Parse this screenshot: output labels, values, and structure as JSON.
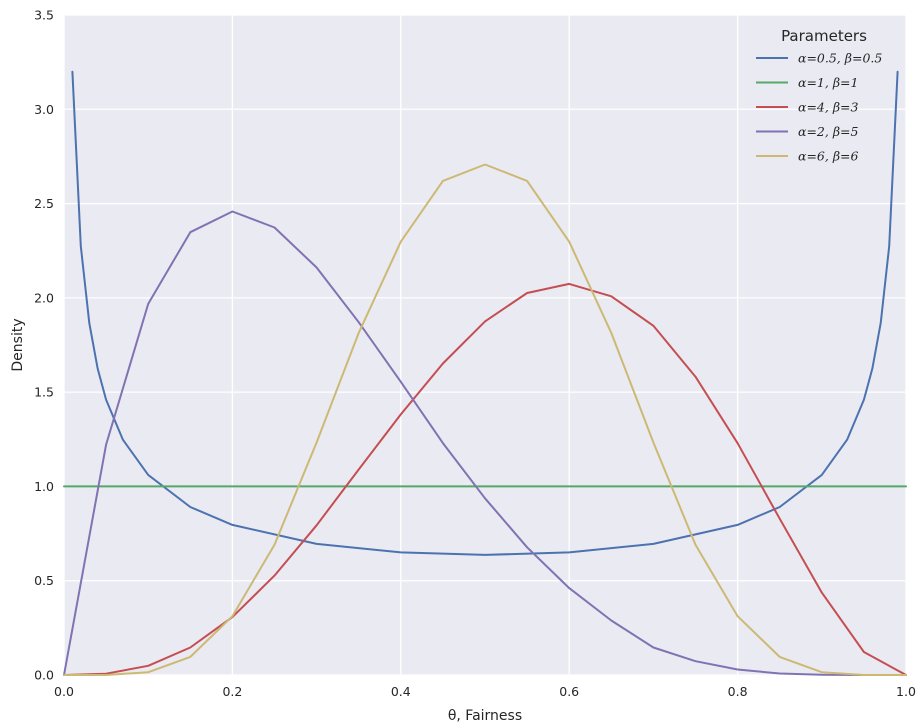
{
  "chart_data": {
    "type": "line",
    "xlabel": "θ, Fairness",
    "ylabel": "Density",
    "xlim": [
      0.0,
      1.0
    ],
    "ylim": [
      0.0,
      3.5
    ],
    "xticks": [
      "0.0",
      "0.2",
      "0.4",
      "0.6",
      "0.8",
      "1.0"
    ],
    "yticks": [
      "0.0",
      "0.5",
      "1.0",
      "1.5",
      "2.0",
      "2.5",
      "3.0",
      "3.5"
    ],
    "grid": true,
    "legend": {
      "title": "Parameters",
      "placement": "top-right"
    },
    "background": "#eaeaf2",
    "series": [
      {
        "name": "α=0.5, β=0.5",
        "color": "#4c72b0",
        "x": [
          0.01,
          0.02,
          0.03,
          0.04,
          0.05,
          0.07,
          0.1,
          0.15,
          0.2,
          0.3,
          0.4,
          0.5,
          0.6,
          0.7,
          0.8,
          0.85,
          0.9,
          0.93,
          0.95,
          0.96,
          0.97,
          0.98,
          0.99
        ],
        "values": [
          3.199,
          2.274,
          1.866,
          1.624,
          1.46,
          1.248,
          1.061,
          0.891,
          0.796,
          0.695,
          0.65,
          0.637,
          0.65,
          0.695,
          0.796,
          0.891,
          1.061,
          1.248,
          1.46,
          1.624,
          1.866,
          2.274,
          3.199
        ]
      },
      {
        "name": "α=1, β=1",
        "color": "#55a868",
        "x": [
          0.0,
          1.0
        ],
        "values": [
          1.0,
          1.0
        ]
      },
      {
        "name": "α=4, β=3",
        "color": "#c44e52",
        "x": [
          0.0,
          0.05,
          0.1,
          0.15,
          0.2,
          0.25,
          0.3,
          0.35,
          0.4,
          0.45,
          0.5,
          0.55,
          0.6,
          0.65,
          0.7,
          0.75,
          0.8,
          0.85,
          0.9,
          0.95,
          1.0
        ],
        "values": [
          0.0,
          0.007,
          0.049,
          0.146,
          0.307,
          0.527,
          0.794,
          1.09,
          1.382,
          1.652,
          1.875,
          2.026,
          2.074,
          2.008,
          1.852,
          1.582,
          1.229,
          0.829,
          0.437,
          0.122,
          0.0
        ]
      },
      {
        "name": "α=2, β=5",
        "color": "#8172b2",
        "x": [
          0.0,
          0.05,
          0.1,
          0.15,
          0.2,
          0.25,
          0.3,
          0.35,
          0.4,
          0.45,
          0.5,
          0.55,
          0.6,
          0.65,
          0.7,
          0.75,
          0.8,
          0.85,
          0.9,
          0.95,
          1.0
        ],
        "values": [
          0.0,
          1.222,
          1.968,
          2.348,
          2.458,
          2.373,
          2.161,
          1.871,
          1.555,
          1.23,
          0.937,
          0.677,
          0.461,
          0.289,
          0.146,
          0.073,
          0.029,
          0.008,
          0.001,
          0.0,
          0.0
        ]
      },
      {
        "name": "α=6, β=6",
        "color": "#ccb974",
        "x": [
          0.0,
          0.05,
          0.1,
          0.15,
          0.2,
          0.25,
          0.3,
          0.35,
          0.4,
          0.45,
          0.5,
          0.55,
          0.6,
          0.65,
          0.7,
          0.75,
          0.8,
          0.85,
          0.9,
          0.95,
          1.0
        ],
        "values": [
          0.0,
          0.0,
          0.015,
          0.096,
          0.312,
          0.691,
          1.233,
          1.814,
          2.298,
          2.62,
          2.707,
          2.62,
          2.298,
          1.814,
          1.233,
          0.691,
          0.312,
          0.096,
          0.015,
          0.0,
          0.0
        ]
      }
    ]
  }
}
